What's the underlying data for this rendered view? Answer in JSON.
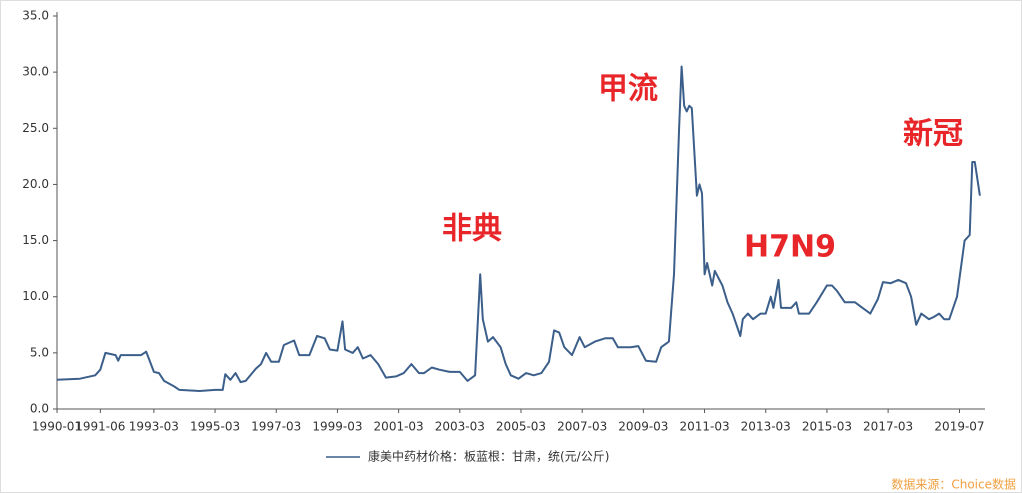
{
  "chart_data": {
    "type": "line",
    "x": [
      "1990-01",
      "1990-10",
      "1991-04",
      "1991-06",
      "1991-08",
      "1991-12",
      "1992-01",
      "1992-02",
      "1992-10",
      "1992-12",
      "1993-01",
      "1993-03",
      "1993-05",
      "1993-07",
      "1993-11",
      "1994-01",
      "1994-09",
      "1995-03",
      "1995-06",
      "1995-07",
      "1995-09",
      "1995-11",
      "1996-01",
      "1996-03",
      "1996-07",
      "1996-09",
      "1996-11",
      "1997-01",
      "1997-04",
      "1997-06",
      "1997-10",
      "1997-12",
      "1998-04",
      "1998-07",
      "1998-10",
      "1998-12",
      "1999-03",
      "1999-05",
      "1999-06",
      "1999-09",
      "1999-11",
      "2000-01",
      "2000-04",
      "2000-07",
      "2000-10",
      "2001-02",
      "2001-05",
      "2001-08",
      "2001-11",
      "2002-01",
      "2002-04",
      "2002-07",
      "2002-11",
      "2003-03",
      "2003-06",
      "2003-09",
      "2003-11",
      "2003-12",
      "2004-02",
      "2004-04",
      "2004-07",
      "2004-09",
      "2004-11",
      "2005-02",
      "2005-05",
      "2005-08",
      "2005-11",
      "2006-02",
      "2006-04",
      "2006-06",
      "2006-08",
      "2006-11",
      "2007-02",
      "2007-04",
      "2007-08",
      "2007-12",
      "2008-03",
      "2008-05",
      "2008-10",
      "2009-01",
      "2009-04",
      "2009-08",
      "2009-10",
      "2010-01",
      "2010-03",
      "2010-05",
      "2010-06",
      "2010-07",
      "2010-08",
      "2010-09",
      "2010-10",
      "2010-12",
      "2011-01",
      "2011-02",
      "2011-03",
      "2011-04",
      "2011-06",
      "2011-07",
      "2011-10",
      "2011-12",
      "2012-02",
      "2012-05",
      "2012-06",
      "2012-08",
      "2012-10",
      "2013-01",
      "2013-03",
      "2013-05",
      "2013-06",
      "2013-08",
      "2013-09",
      "2014-01",
      "2014-03",
      "2014-04",
      "2014-08",
      "2014-11",
      "2015-03",
      "2015-05",
      "2015-07",
      "2015-10",
      "2016-02",
      "2016-05",
      "2016-08",
      "2016-11",
      "2017-01",
      "2017-04",
      "2017-07",
      "2017-10",
      "2017-12",
      "2018-02",
      "2018-04",
      "2018-07",
      "2018-09",
      "2018-11",
      "2019-01",
      "2019-03",
      "2019-06",
      "2019-09",
      "2019-11",
      "2019-12",
      "2020-01",
      "2020-03"
    ],
    "series": [
      {
        "name": "康美中药材价格：板蓝根：甘肃，统(元/公斤)",
        "color": "#3b5f8a",
        "values": [
          2.6,
          2.7,
          3.0,
          3.5,
          5.0,
          4.8,
          4.3,
          4.8,
          4.8,
          5.1,
          4.5,
          3.3,
          3.2,
          2.5,
          2.0,
          1.7,
          1.6,
          1.7,
          1.7,
          3.1,
          2.6,
          3.2,
          2.4,
          2.5,
          3.6,
          4.0,
          5.0,
          4.2,
          4.2,
          5.7,
          6.1,
          4.8,
          4.8,
          6.5,
          6.3,
          5.3,
          5.2,
          7.8,
          5.3,
          5.0,
          5.5,
          4.5,
          4.8,
          4.0,
          2.8,
          2.9,
          3.2,
          4.0,
          3.2,
          3.2,
          3.7,
          3.5,
          3.3,
          3.3,
          2.5,
          3.0,
          12.0,
          8.0,
          6.0,
          6.4,
          5.5,
          4.0,
          3.0,
          2.7,
          3.2,
          3.0,
          3.2,
          4.2,
          7.0,
          6.8,
          5.5,
          4.8,
          6.4,
          5.5,
          6.0,
          6.3,
          6.3,
          5.5,
          5.5,
          5.6,
          4.3,
          4.2,
          5.5,
          6.0,
          12.0,
          25.0,
          30.5,
          27.0,
          26.5,
          27.0,
          26.8,
          19.0,
          20.0,
          19.2,
          12.0,
          13.0,
          11.0,
          12.3,
          11.0,
          9.5,
          8.5,
          6.5,
          8.0,
          8.5,
          8.0,
          8.5,
          8.5,
          10.0,
          9.0,
          11.5,
          9.0,
          9.0,
          9.5,
          8.5,
          8.5,
          9.5,
          11.0,
          11.0,
          10.5,
          9.5,
          9.5,
          9.0,
          8.5,
          9.8,
          11.3,
          11.2,
          11.5,
          11.2,
          10.0,
          7.5,
          8.5,
          8.0,
          8.2,
          8.5,
          8.0,
          8.0,
          10.0,
          15.0,
          15.5,
          22.0,
          22.0,
          19.0
        ]
      }
    ],
    "xlim": [
      "1990-01",
      "2020-05"
    ],
    "xticks": [
      "1990-01",
      "1991-06",
      "1993-03",
      "1995-03",
      "1997-03",
      "1999-03",
      "2001-03",
      "2003-03",
      "2005-03",
      "2007-03",
      "2009-03",
      "2011-03",
      "2013-03",
      "2015-03",
      "2017-03",
      "2019-07"
    ],
    "ylim": [
      0,
      35
    ],
    "yticks": [
      {
        "value": 0,
        "label": "0.0"
      },
      {
        "value": 5,
        "label": "5.0"
      },
      {
        "value": 10,
        "label": "10.0"
      },
      {
        "value": 15,
        "label": "15.0"
      },
      {
        "value": 20,
        "label": "20.0"
      },
      {
        "value": 25,
        "label": "25.0"
      },
      {
        "value": 30,
        "label": "30.0"
      },
      {
        "value": 35,
        "label": "35.0"
      }
    ],
    "annotations": [
      "非典",
      "甲流",
      "H7N9",
      "新冠"
    ],
    "source": "数据来源：Choice数据"
  }
}
